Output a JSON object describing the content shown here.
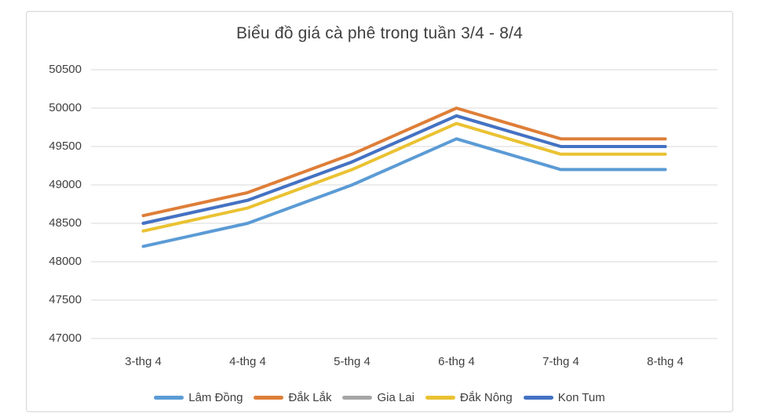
{
  "chart_data": {
    "type": "line",
    "title": "Biểu đồ giá cà phê trong tuần 3/4 - 8/4",
    "categories": [
      "3-thg 4",
      "4-thg 4",
      "5-thg 4",
      "6-thg 4",
      "7-thg 4",
      "8-thg 4"
    ],
    "series": [
      {
        "name": "Lâm Đồng",
        "color": "#5B9BD5",
        "values": [
          48200,
          48500,
          49000,
          49600,
          49200,
          49200
        ]
      },
      {
        "name": "Đắk Lắk",
        "color": "#DE7E38",
        "values": [
          48600,
          48900,
          49400,
          50000,
          49600,
          49600
        ]
      },
      {
        "name": "Gia Lai",
        "color": "#A6A6A6",
        "values": [
          48500,
          48800,
          49300,
          49900,
          49500,
          49500
        ]
      },
      {
        "name": "Đắk Nông",
        "color": "#EAC232",
        "values": [
          48400,
          48700,
          49200,
          49800,
          49400,
          49400
        ]
      },
      {
        "name": "Kon Tum",
        "color": "#4472C4",
        "values": [
          48500,
          48800,
          49300,
          49900,
          49500,
          49500
        ]
      }
    ],
    "ylim": [
      47000,
      50500
    ],
    "yticks": [
      47000,
      47500,
      48000,
      48500,
      49000,
      49500,
      50000,
      50500
    ],
    "xlabel": "",
    "ylabel": "",
    "grid": "horizontal",
    "gridline_color": "#D9D9D9",
    "legend_position": "bottom"
  }
}
